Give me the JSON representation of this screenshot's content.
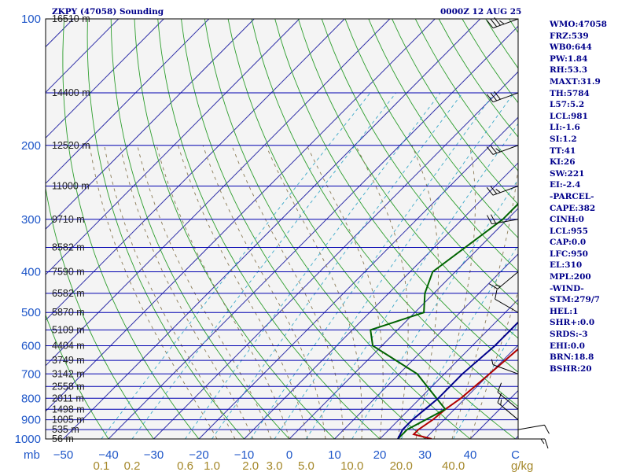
{
  "header": {
    "station": "ZKPY (47058) Sounding",
    "time": "0000Z 12 AUG 25"
  },
  "stats": [
    "WMO:47058",
    "FRZ:539",
    "WB0:644",
    "PW:1.84",
    "RH:53.3",
    "MAXT:31.9",
    "TH:5784",
    "L57:5.2",
    "LCL:981",
    "LI:-1.6",
    "SI:1.2",
    "TT:41",
    "KI:26",
    "SW:221",
    "EI:-2.4",
    "-PARCEL-",
    "CAPE:382",
    "CINH:0",
    "LCL:955",
    "CAP:0.0",
    "LFC:950",
    "EL:310",
    "MPL:200",
    "-WIND-",
    "STM:279/7",
    "HEL:1",
    "SHR+:0.0",
    "SRDS:-3",
    "EHI:0.0",
    "BRN:18.8",
    "BSHR:20"
  ],
  "chart_data": {
    "type": "line",
    "chart_kind": "skew-T log-P sounding",
    "y_scale": "log",
    "y_axis_unit_label": "mb",
    "y_range_mb": [
      1000,
      100
    ],
    "pressure_ticks": [
      "100",
      "200",
      "300",
      "400",
      "500",
      "600",
      "700",
      "800",
      "900",
      "1000"
    ],
    "x_range_c": [
      -50,
      50
    ],
    "temperature_ticks": [
      "−50",
      "−40",
      "−30",
      "−20",
      "−10",
      "0",
      "10",
      "20",
      "30",
      "40",
      "C"
    ],
    "mixing_ratio_ticks": [
      "0.1",
      "0.2",
      "0.6",
      "1.0",
      "2.0",
      "3.0",
      "5.0",
      "10.0",
      "20.0",
      "40.0"
    ],
    "mixing_ratio_unit": "g/kg",
    "height_labels": [
      {
        "p": 100,
        "label": "16510 m"
      },
      {
        "p": 150,
        "label": "14400 m"
      },
      {
        "p": 200,
        "label": "12520 m"
      },
      {
        "p": 250,
        "label": "11000 m"
      },
      {
        "p": 300,
        "label": "9710 m"
      },
      {
        "p": 350,
        "label": "8582 m"
      },
      {
        "p": 400,
        "label": "7590 m"
      },
      {
        "p": 450,
        "label": "6582 m"
      },
      {
        "p": 500,
        "label": "5870 m"
      },
      {
        "p": 550,
        "label": "5109 m"
      },
      {
        "p": 600,
        "label": "4404 m"
      },
      {
        "p": 650,
        "label": "3749 m"
      },
      {
        "p": 700,
        "label": "3142 m"
      },
      {
        "p": 750,
        "label": "2558 m"
      },
      {
        "p": 800,
        "label": "2011 m"
      },
      {
        "p": 850,
        "label": "1498 m"
      },
      {
        "p": 900,
        "label": "1005 m"
      },
      {
        "p": 950,
        "label": "535 m"
      },
      {
        "p": 1000,
        "label": "56 m"
      }
    ],
    "series": [
      {
        "name": "",
        "color": "#b00000",
        "points": [
          [
            1000,
            31.5
          ],
          [
            975,
            26.5
          ],
          [
            950,
            26.5
          ],
          [
            900,
            27.5
          ],
          [
            850,
            28
          ],
          [
            800,
            29
          ],
          [
            700,
            30
          ],
          [
            600,
            31
          ],
          [
            500,
            29
          ],
          [
            400,
            28
          ],
          [
            300,
            30
          ],
          [
            250,
            31
          ],
          [
            200,
            32
          ],
          [
            150,
            32.5
          ],
          [
            120,
            34
          ],
          [
            100,
            35
          ]
        ]
      },
      {
        "name": "",
        "color": "#006400",
        "points": [
          [
            1000,
            24
          ],
          [
            970,
            24
          ],
          [
            950,
            24
          ],
          [
            850,
            28
          ],
          [
            700,
            14
          ],
          [
            600,
            -2
          ],
          [
            550,
            -6
          ],
          [
            500,
            2
          ],
          [
            450,
            -2
          ],
          [
            400,
            -5
          ],
          [
            300,
            -1
          ],
          [
            250,
            -1
          ],
          [
            200,
            -1
          ],
          [
            150,
            -4
          ],
          [
            120,
            -1
          ],
          [
            100,
            6
          ]
        ]
      },
      {
        "name": "",
        "color": "#00008b",
        "points": [
          [
            1000,
            24
          ],
          [
            950,
            23
          ],
          [
            900,
            23
          ],
          [
            850,
            23.5
          ],
          [
            800,
            24
          ],
          [
            700,
            24
          ],
          [
            600,
            25
          ],
          [
            500,
            25
          ],
          [
            450,
            26
          ],
          [
            400,
            27
          ],
          [
            350,
            27.5
          ],
          [
            300,
            27
          ],
          [
            250,
            26
          ],
          [
            200,
            26
          ],
          [
            150,
            22
          ],
          [
            120,
            21
          ],
          [
            100,
            19
          ]
        ]
      }
    ],
    "wind_barbs": [
      {
        "p": 1000,
        "dir": 90,
        "spd": 15
      },
      {
        "p": 950,
        "dir": 80,
        "spd": 12
      },
      {
        "p": 900,
        "dir": 310,
        "spd": 15
      },
      {
        "p": 850,
        "dir": 310,
        "spd": 10
      },
      {
        "p": 700,
        "dir": 290,
        "spd": 5
      },
      {
        "p": 500,
        "dir": 300,
        "spd": 10
      },
      {
        "p": 400,
        "dir": 230,
        "spd": 15
      },
      {
        "p": 300,
        "dir": 260,
        "spd": 20
      },
      {
        "p": 250,
        "dir": 250,
        "spd": 25
      },
      {
        "p": 200,
        "dir": 250,
        "spd": 25
      },
      {
        "p": 150,
        "dir": 250,
        "spd": 30
      },
      {
        "p": 100,
        "dir": 250,
        "spd": 35
      }
    ]
  }
}
